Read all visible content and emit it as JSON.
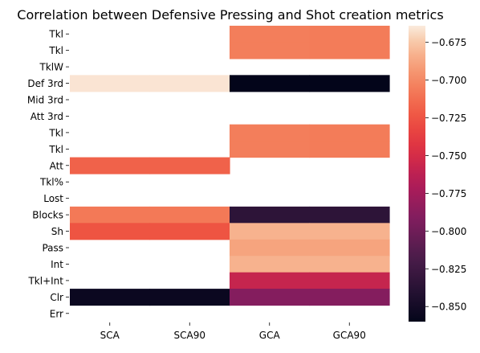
{
  "chart_data": {
    "type": "heatmap",
    "title": "Correlation between Defensive Pressing and Shot creation metrics",
    "xlabel": "",
    "ylabel": "",
    "x_categories": [
      "SCA",
      "SCA90",
      "GCA",
      "GCA90"
    ],
    "y_categories": [
      "Tkl",
      "Tkl",
      "TklW",
      "Def 3rd",
      "Mid 3rd",
      "Att 3rd",
      "Tkl",
      "Tkl",
      "Att",
      "Tkl%",
      "Lost",
      "Blocks",
      "Sh",
      "Pass",
      "Int",
      "Tkl+Int",
      "Clr",
      "Err"
    ],
    "values": [
      [
        null,
        null,
        -0.705,
        -0.706
      ],
      [
        null,
        null,
        -0.705,
        -0.706
      ],
      [
        null,
        null,
        null,
        null
      ],
      [
        -0.666,
        -0.666,
        -0.86,
        -0.86
      ],
      [
        null,
        null,
        null,
        null
      ],
      [
        null,
        null,
        null,
        null
      ],
      [
        null,
        null,
        -0.705,
        -0.706
      ],
      [
        null,
        null,
        -0.705,
        -0.706
      ],
      [
        -0.718,
        -0.718,
        null,
        null
      ],
      [
        null,
        null,
        null,
        null
      ],
      [
        null,
        null,
        null,
        null
      ],
      [
        -0.707,
        -0.707,
        -0.835,
        -0.835
      ],
      [
        -0.725,
        -0.725,
        -0.683,
        -0.683
      ],
      [
        null,
        null,
        -0.688,
        -0.688
      ],
      [
        null,
        null,
        -0.683,
        -0.683
      ],
      [
        null,
        null,
        -0.758,
        -0.758
      ],
      [
        -0.855,
        -0.855,
        -0.79,
        -0.79
      ],
      [
        null,
        null,
        null,
        null
      ]
    ],
    "colorbar": {
      "colormap": "rocket",
      "vmin": -0.86,
      "vmax": -0.664,
      "ticks": [
        -0.675,
        -0.7,
        -0.725,
        -0.75,
        -0.775,
        -0.8,
        -0.825,
        -0.85
      ],
      "tick_labels": [
        "−0.675",
        "−0.700",
        "−0.725",
        "−0.750",
        "−0.775",
        "−0.800",
        "−0.825",
        "−0.850"
      ]
    },
    "grid": false,
    "legend": "colorbar-right"
  }
}
